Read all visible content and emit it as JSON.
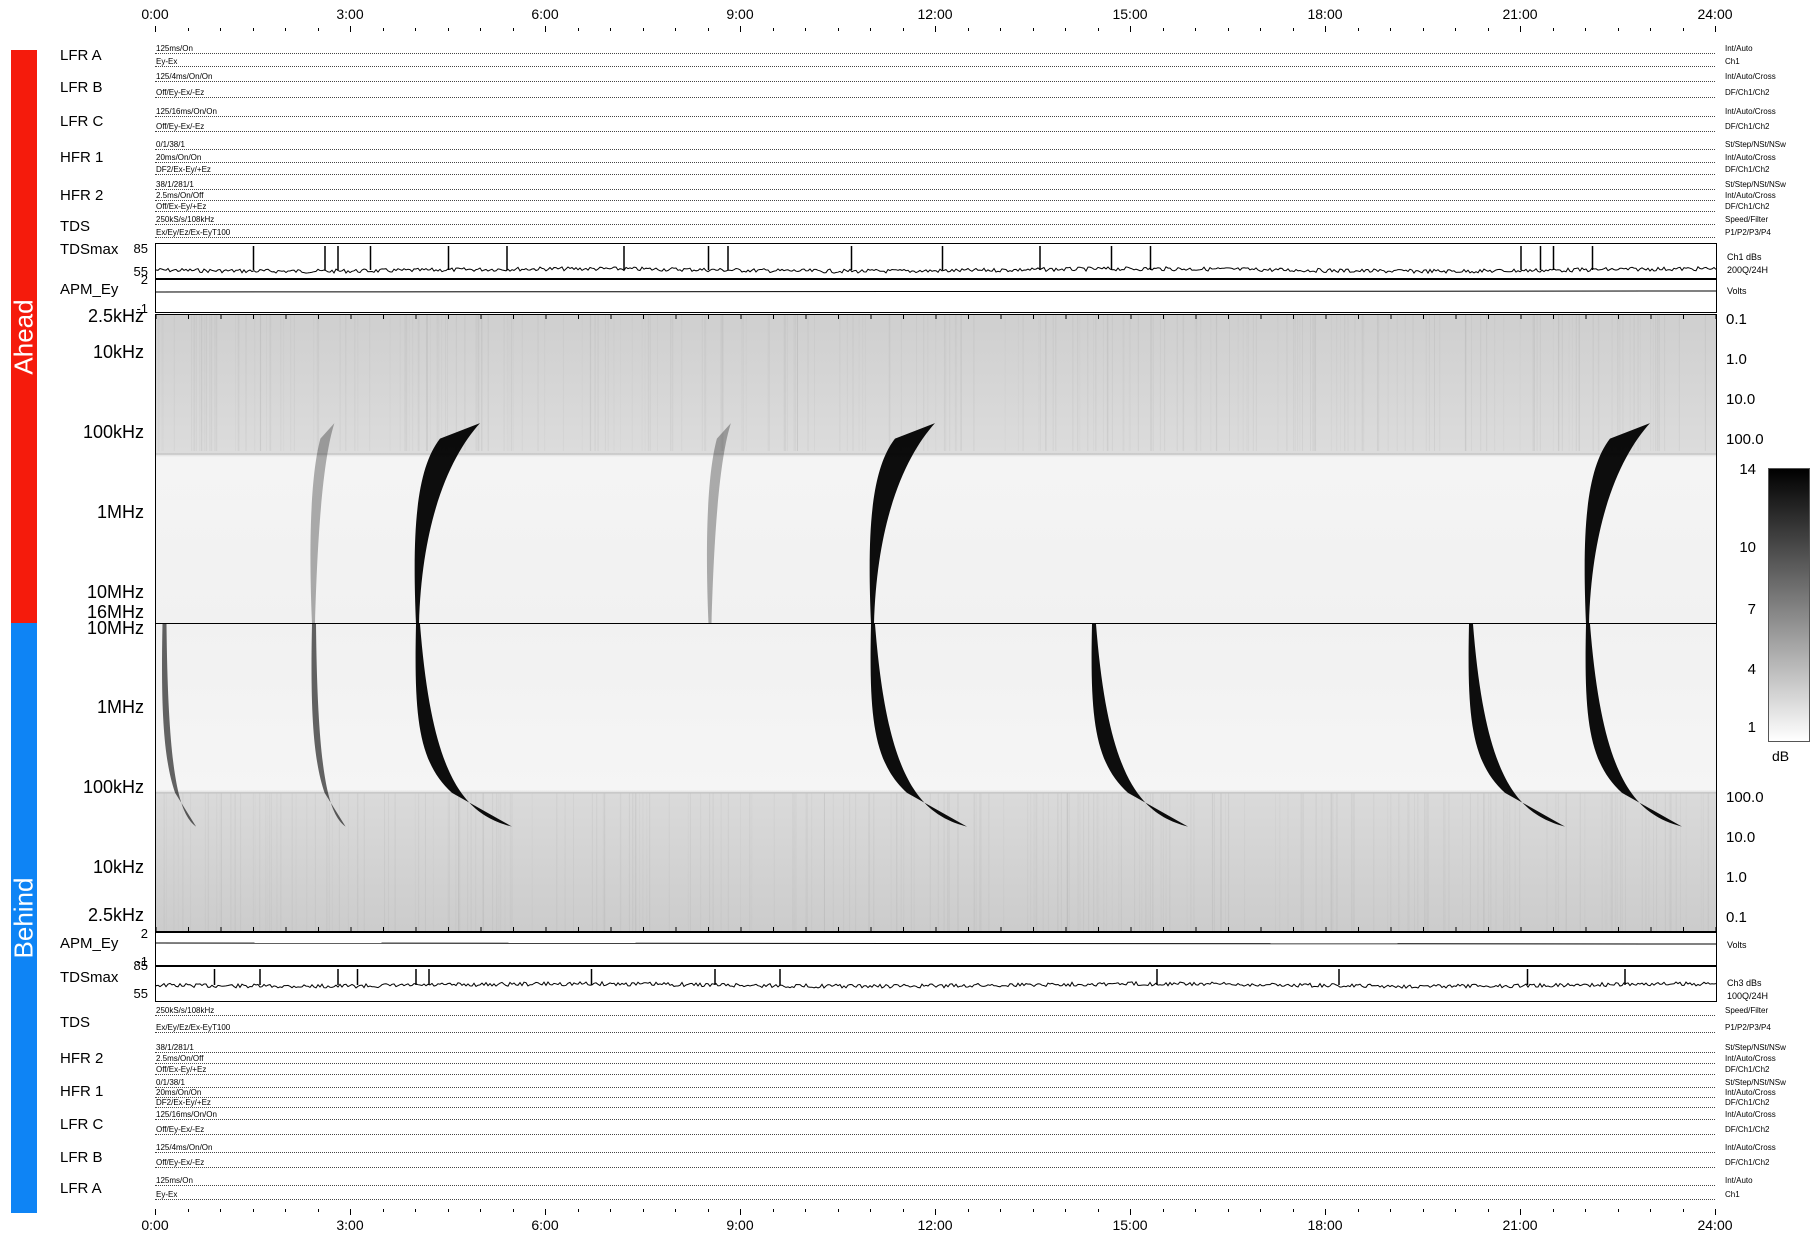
{
  "time_axis": {
    "labels": [
      "0:00",
      "3:00",
      "6:00",
      "9:00",
      "12:00",
      "15:00",
      "18:00",
      "21:00",
      "24:00"
    ]
  },
  "sidebar": {
    "ahead_label": "Ahead",
    "behind_label": "Behind",
    "ahead_color": "#f51b0c",
    "behind_color": "#0e84f5"
  },
  "ahead_instruments": [
    {
      "name": "LFR A",
      "left": [
        "125ms/On",
        "Ey-Ex"
      ],
      "right": [
        "Int/Auto",
        "Ch1"
      ]
    },
    {
      "name": "LFR B",
      "left": [
        "125/4ms/On/On",
        "Off/Ey-Ex/-Ez"
      ],
      "right": [
        "Int/Auto/Cross",
        "DF/Ch1/Ch2"
      ]
    },
    {
      "name": "LFR C",
      "left": [
        "125/16ms/On/On",
        "Off/Ey-Ex/-Ez"
      ],
      "right": [
        "Int/Auto/Cross",
        "DF/Ch1/Ch2"
      ]
    },
    {
      "name": "HFR 1",
      "left": [
        "0/1/38/1",
        "20ms/On/On",
        "DF2/Ex-Ey/+Ez"
      ],
      "right": [
        "St/Step/NSt/NSw",
        "Int/Auto/Cross",
        "DF/Ch1/Ch2"
      ]
    },
    {
      "name": "HFR 2",
      "left": [
        "38/1/281/1",
        "2.5ms/On/Off",
        "Off/Ex-Ey/+Ez"
      ],
      "right": [
        "St/Step/NSt/NSw",
        "Int/Auto/Cross",
        "DF/Ch1/Ch2"
      ]
    },
    {
      "name": "TDS",
      "left": [
        "250kS/s/108kHz",
        "Ex/Ey/Ez/Ex-EyT100"
      ],
      "right": [
        "Speed/Filter",
        "P1/P2/P3/P4"
      ]
    }
  ],
  "behind_instruments": [
    {
      "name": "TDS",
      "left": [
        "250kS/s/108kHz",
        "Ex/Ey/Ez/Ex-EyT100"
      ],
      "right": [
        "Speed/Filter",
        "P1/P2/P3/P4"
      ]
    },
    {
      "name": "HFR 2",
      "left": [
        "38/1/281/1",
        "2.5ms/On/Off",
        "Off/Ex-Ey/+Ez"
      ],
      "right": [
        "St/Step/NSt/NSw",
        "Int/Auto/Cross",
        "DF/Ch1/Ch2"
      ]
    },
    {
      "name": "HFR 1",
      "left": [
        "0/1/38/1",
        "20ms/On/On",
        "DF2/Ex-Ey/+Ez"
      ],
      "right": [
        "St/Step/NSt/NSw",
        "Int/Auto/Cross",
        "DF/Ch1/Ch2"
      ]
    },
    {
      "name": "LFR C",
      "left": [
        "125/16ms/On/On",
        "Off/Ey-Ex/-Ez"
      ],
      "right": [
        "Int/Auto/Cross",
        "DF/Ch1/Ch2"
      ]
    },
    {
      "name": "LFR B",
      "left": [
        "125/4ms/On/On",
        "Off/Ey-Ex/-Ez"
      ],
      "right": [
        "Int/Auto/Cross",
        "DF/Ch1/Ch2"
      ]
    },
    {
      "name": "LFR A",
      "left": [
        "125ms/On",
        "Ey-Ex"
      ],
      "right": [
        "Int/Auto",
        "Ch1"
      ]
    }
  ],
  "ahead_tdsmax": {
    "name": "TDSmax",
    "y_top": "85",
    "y_bottom": "55",
    "note1": "Ch1 dBs",
    "note2": "200Q/24H"
  },
  "ahead_apm": {
    "name": "APM_Ey",
    "y_top": "2",
    "y_bottom": "-1",
    "note": "Volts"
  },
  "behind_apm": {
    "name": "APM_Ey",
    "y_top": "2",
    "y_bottom": "-1",
    "note": "Volts"
  },
  "behind_tdsmax": {
    "name": "TDSmax",
    "y_top": "85",
    "y_bottom": "55",
    "note1": "Ch3 dBs",
    "note2": "100Q/24H"
  },
  "ahead_freq_labels": [
    "2.5kHz",
    "10kHz",
    "100kHz",
    "1MHz",
    "10MHz"
  ],
  "behind_freq_labels": [
    "16MHz",
    "10MHz",
    "1MHz",
    "100kHz",
    "10kHz",
    "2.5kHz"
  ],
  "ahead_flux_labels": [
    "0.1",
    "1.0",
    "10.0",
    "100.0"
  ],
  "behind_flux_labels": [
    "100.0",
    "10.0",
    "1.0",
    "0.1"
  ],
  "colorbar": {
    "labels": [
      "14",
      "10",
      "7",
      "4",
      "1"
    ],
    "unit": "dB"
  },
  "chart_data": {
    "type": "heatmap",
    "title": "",
    "x_range_hours": [
      0,
      24
    ],
    "x_ticks": [
      "0:00",
      "3:00",
      "6:00",
      "9:00",
      "12:00",
      "15:00",
      "18:00",
      "21:00",
      "24:00"
    ],
    "colorbar_range_db": [
      1,
      14
    ],
    "ahead_bursts": [
      {
        "start_hour": 4.0,
        "intensity": "strong"
      },
      {
        "start_hour": 11.0,
        "intensity": "strong"
      },
      {
        "start_hour": 22.0,
        "intensity": "strong"
      },
      {
        "start_hour": 8.5,
        "intensity": "weak"
      },
      {
        "start_hour": 2.4,
        "intensity": "weak"
      }
    ],
    "behind_bursts": [
      {
        "start_hour": 0.1,
        "intensity": "medium"
      },
      {
        "start_hour": 2.4,
        "intensity": "medium"
      },
      {
        "start_hour": 4.0,
        "intensity": "strong"
      },
      {
        "start_hour": 11.0,
        "intensity": "strong"
      },
      {
        "start_hour": 14.4,
        "intensity": "strong"
      },
      {
        "start_hour": 20.2,
        "intensity": "strong"
      },
      {
        "start_hour": 22.0,
        "intensity": "strong"
      }
    ],
    "ahead_tdsmax_spikes_hours": [
      1.5,
      2.6,
      2.8,
      3.3,
      4.5,
      5.4,
      7.2,
      8.5,
      8.8,
      10.7,
      12.1,
      13.6,
      14.7,
      15.3,
      21.0,
      21.3,
      21.5,
      22.1
    ],
    "behind_tdsmax_spikes_hours": [
      0.9,
      1.6,
      2.8,
      3.1,
      4.0,
      4.2,
      6.7,
      8.6,
      9.6,
      15.4,
      18.2,
      21.1,
      22.6
    ]
  }
}
